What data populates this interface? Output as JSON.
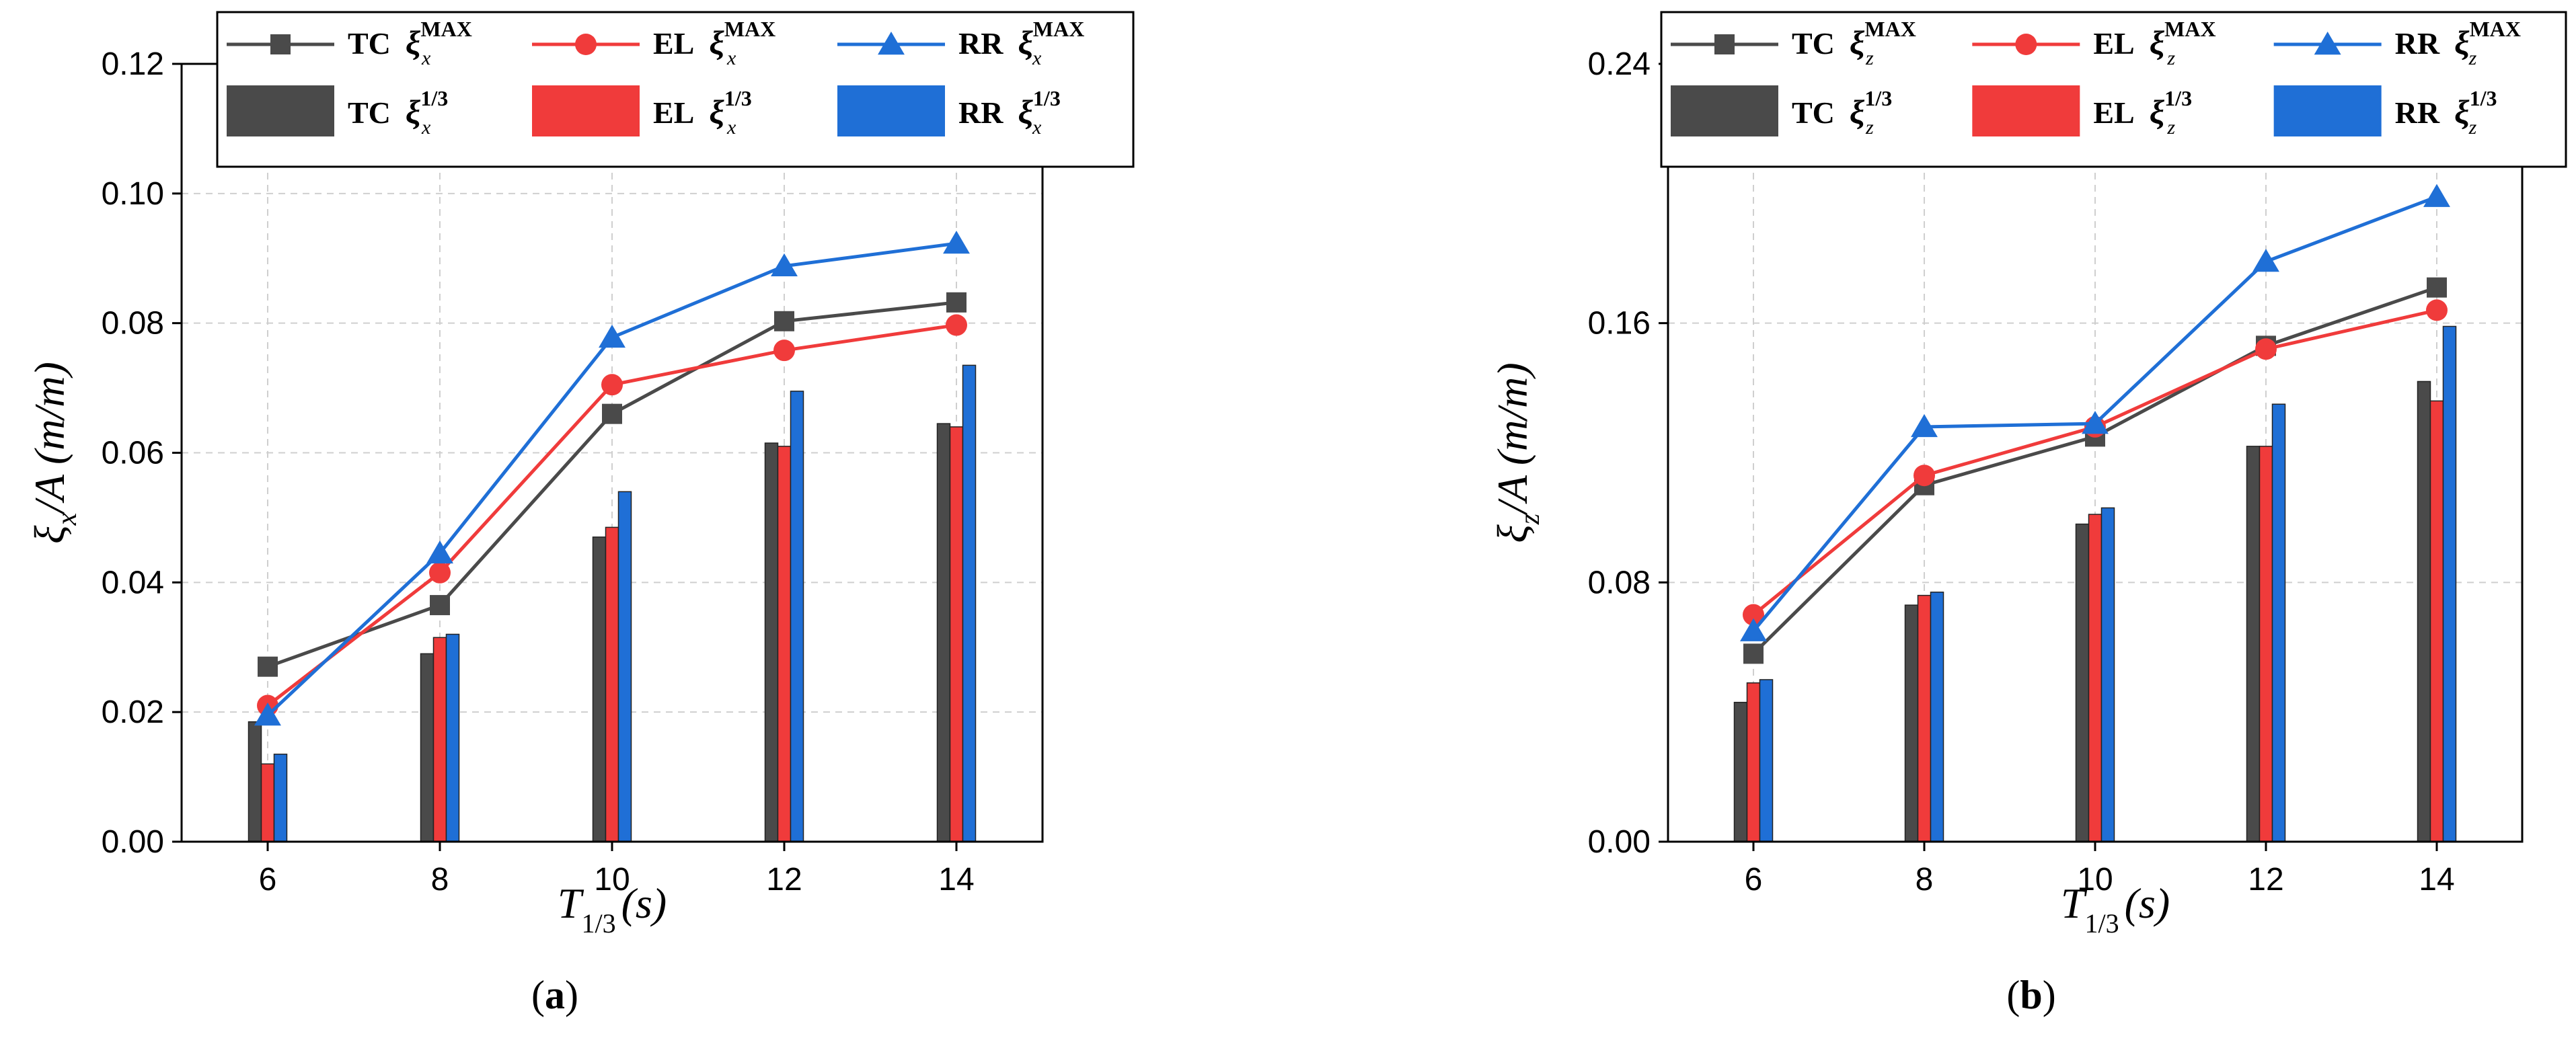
{
  "colors": {
    "TC": "#4a4a4a",
    "EL": "#f03b3b",
    "RR": "#1f6fd6"
  },
  "chart_data": [
    {
      "type": "bar+line",
      "panel_label_open": "(",
      "panel_label_letter": "a",
      "panel_label_close": ")",
      "xlabel": {
        "main": "T",
        "sub": "1/3",
        "unit": "(s)"
      },
      "ylabel": {
        "main": "ξ",
        "sub": "x",
        "tail": "/A (m/m)"
      },
      "x": [
        6,
        8,
        10,
        12,
        14
      ],
      "x_ticks": [
        "6",
        "8",
        "10",
        "12",
        "14"
      ],
      "xlim": [
        5,
        15
      ],
      "ylim": [
        0,
        0.12
      ],
      "y_ticks": [
        "0.00",
        "0.02",
        "0.04",
        "0.06",
        "0.08",
        "0.10",
        "0.12"
      ],
      "y_tick_values": [
        0,
        0.02,
        0.04,
        0.06,
        0.08,
        0.1,
        0.12
      ],
      "grid": true,
      "legend": {
        "placement": "top",
        "entries": [
          {
            "key": "TC",
            "label": "TC",
            "sym": "ξ",
            "sub": "x",
            "sup": "MAX",
            "kind": "line",
            "marker": "square"
          },
          {
            "key": "EL",
            "label": "EL",
            "sym": "ξ",
            "sub": "x",
            "sup": "MAX",
            "kind": "line",
            "marker": "circle"
          },
          {
            "key": "RR",
            "label": "RR",
            "sym": "ξ",
            "sub": "x",
            "sup": "MAX",
            "kind": "line",
            "marker": "triangle"
          },
          {
            "key": "TC",
            "label": "TC",
            "sym": "ξ",
            "sub": "x",
            "sup": "1/3",
            "kind": "bar"
          },
          {
            "key": "EL",
            "label": "EL",
            "sym": "ξ",
            "sub": "x",
            "sup": "1/3",
            "kind": "bar"
          },
          {
            "key": "RR",
            "label": "RR",
            "sym": "ξ",
            "sub": "x",
            "sup": "1/3",
            "kind": "bar"
          }
        ]
      },
      "bar_series": [
        {
          "key": "TC",
          "values": [
            0.0185,
            0.029,
            0.047,
            0.0615,
            0.0645
          ]
        },
        {
          "key": "EL",
          "values": [
            0.012,
            0.0315,
            0.0485,
            0.061,
            0.064
          ]
        },
        {
          "key": "RR",
          "values": [
            0.0135,
            0.032,
            0.054,
            0.0695,
            0.0735
          ]
        }
      ],
      "line_series": [
        {
          "key": "TC",
          "marker": "square",
          "values": [
            0.027,
            0.0365,
            0.066,
            0.0803,
            0.0832
          ]
        },
        {
          "key": "EL",
          "marker": "circle",
          "values": [
            0.021,
            0.0415,
            0.0705,
            0.0758,
            0.0797
          ]
        },
        {
          "key": "RR",
          "marker": "triangle",
          "values": [
            0.0195,
            0.0445,
            0.0778,
            0.0888,
            0.0923
          ]
        }
      ]
    },
    {
      "type": "bar+line",
      "panel_label_open": "(",
      "panel_label_letter": "b",
      "panel_label_close": ")",
      "xlabel": {
        "main": "T",
        "sub": "1/3",
        "unit": "(s)"
      },
      "ylabel": {
        "main": "ξ",
        "sub": "z",
        "tail": "/A (m/m)"
      },
      "x": [
        6,
        8,
        10,
        12,
        14
      ],
      "x_ticks": [
        "6",
        "8",
        "10",
        "12",
        "14"
      ],
      "xlim": [
        5,
        15
      ],
      "ylim": [
        0,
        0.24
      ],
      "y_ticks": [
        "0.00",
        "0.08",
        "0.16",
        "0.24"
      ],
      "y_tick_values": [
        0,
        0.08,
        0.16,
        0.24
      ],
      "grid": true,
      "legend": {
        "placement": "top",
        "entries": [
          {
            "key": "TC",
            "label": "TC",
            "sym": "ξ",
            "sub": "z",
            "sup": "MAX",
            "kind": "line",
            "marker": "square"
          },
          {
            "key": "EL",
            "label": "EL",
            "sym": "ξ",
            "sub": "z",
            "sup": "MAX",
            "kind": "line",
            "marker": "circle"
          },
          {
            "key": "RR",
            "label": "RR",
            "sym": "ξ",
            "sub": "z",
            "sup": "MAX",
            "kind": "line",
            "marker": "triangle"
          },
          {
            "key": "TC",
            "label": "TC",
            "sym": "ξ",
            "sub": "z",
            "sup": "1/3",
            "kind": "bar"
          },
          {
            "key": "EL",
            "label": "EL",
            "sym": "ξ",
            "sub": "z",
            "sup": "1/3",
            "kind": "bar"
          },
          {
            "key": "RR",
            "label": "RR",
            "sym": "ξ",
            "sub": "z",
            "sup": "1/3",
            "kind": "bar"
          }
        ]
      },
      "bar_series": [
        {
          "key": "TC",
          "values": [
            0.043,
            0.073,
            0.098,
            0.122,
            0.142
          ]
        },
        {
          "key": "EL",
          "values": [
            0.049,
            0.076,
            0.101,
            0.122,
            0.136
          ]
        },
        {
          "key": "RR",
          "values": [
            0.05,
            0.077,
            0.103,
            0.135,
            0.159
          ]
        }
      ],
      "line_series": [
        {
          "key": "TC",
          "marker": "square",
          "values": [
            0.058,
            0.11,
            0.125,
            0.153,
            0.171
          ]
        },
        {
          "key": "EL",
          "marker": "circle",
          "values": [
            0.07,
            0.113,
            0.128,
            0.152,
            0.164
          ]
        },
        {
          "key": "RR",
          "marker": "triangle",
          "values": [
            0.065,
            0.128,
            0.129,
            0.179,
            0.199
          ]
        }
      ]
    }
  ]
}
